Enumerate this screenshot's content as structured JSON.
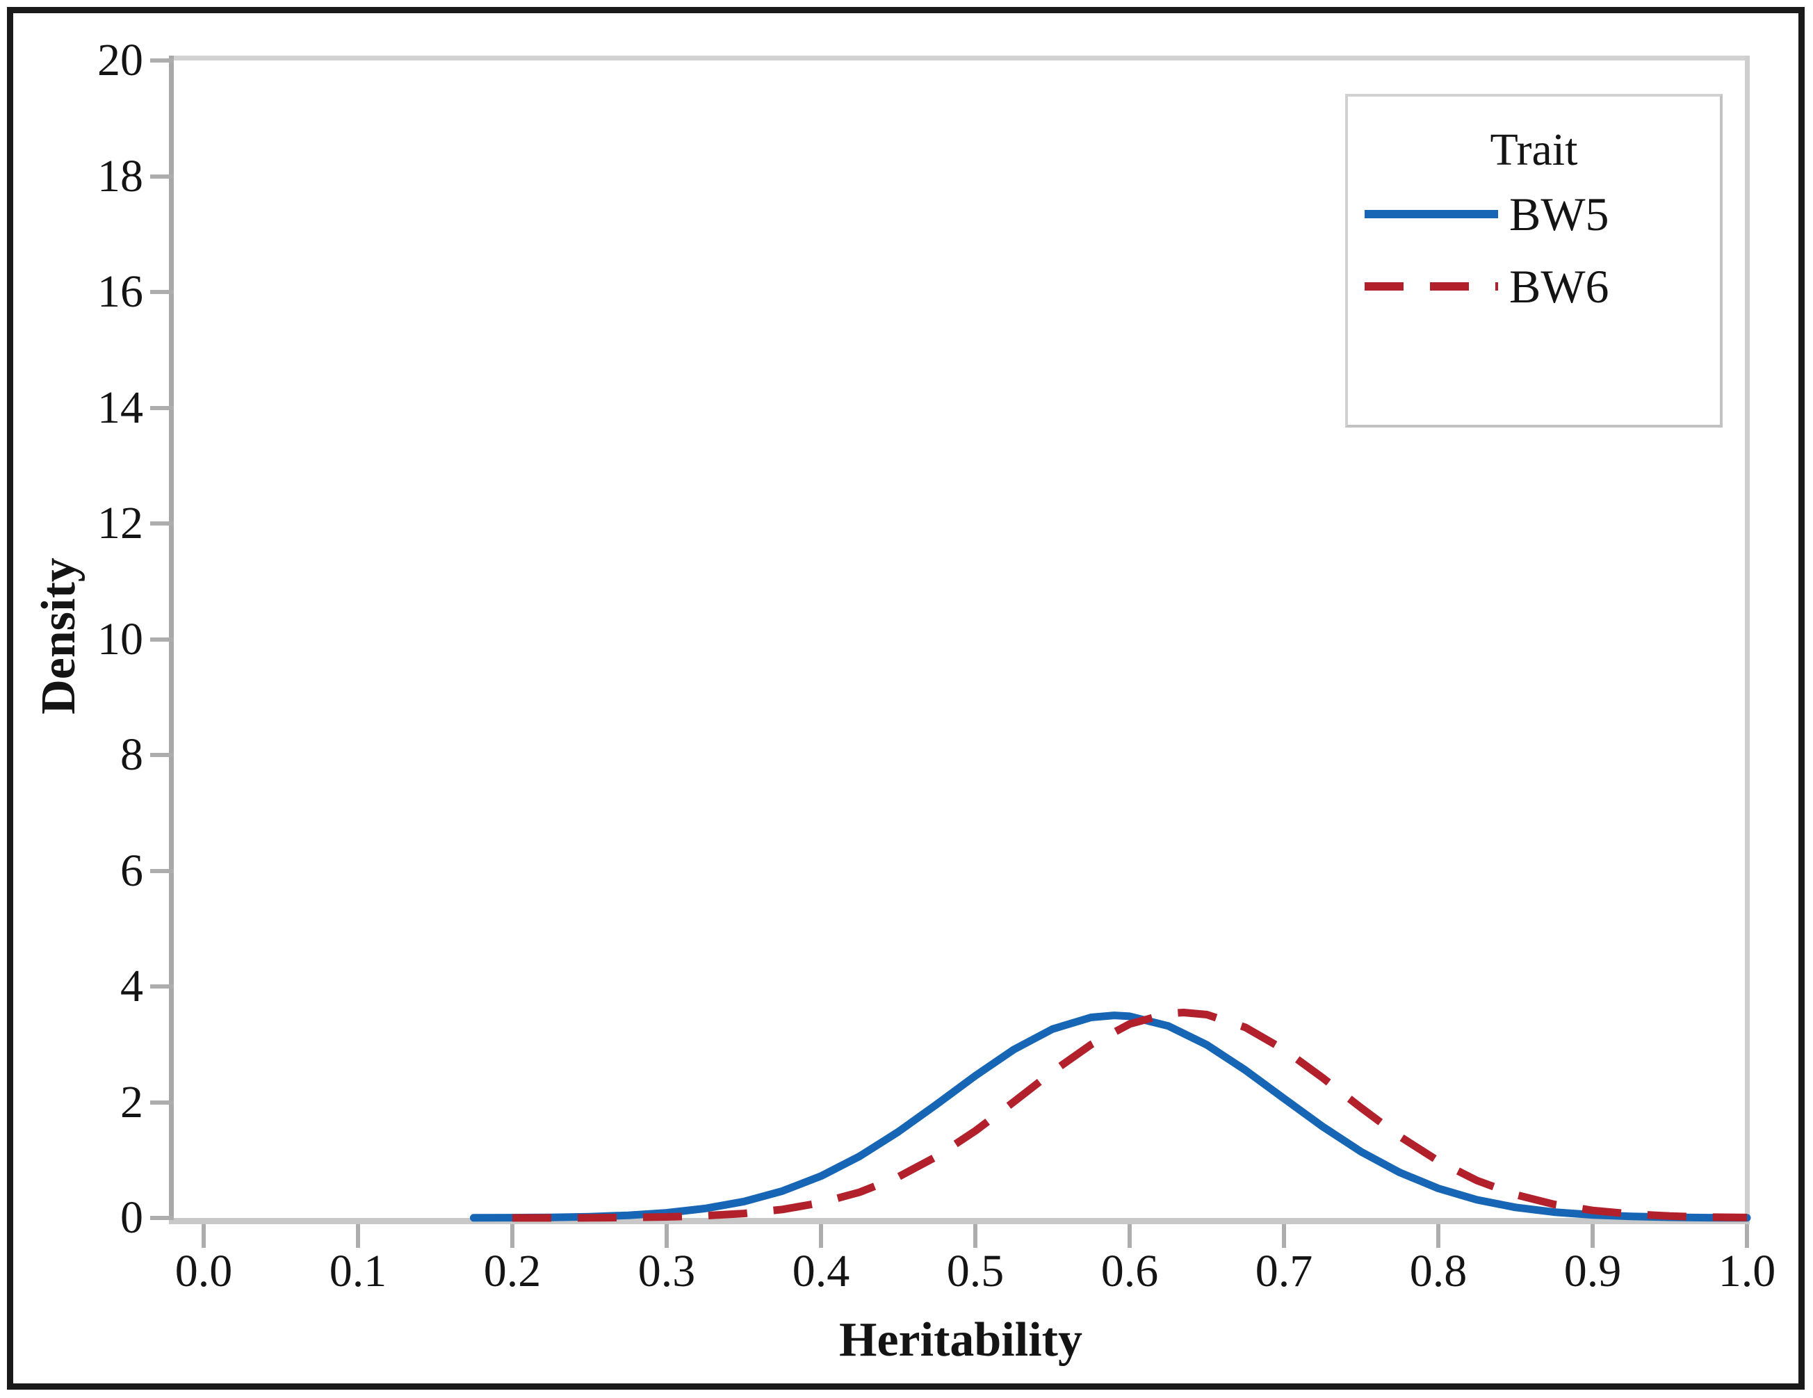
{
  "figure": {
    "background": "#ffffff",
    "outer_border_color": "#1a1a1a",
    "frame_color": "#d2d2d2",
    "axis_line_color": "#a8a8a8",
    "tick_color": "#adadad",
    "text_color": "#141414"
  },
  "chart_data": {
    "type": "line",
    "subtype": "density-curves",
    "title": "",
    "xlabel": "Heritability",
    "ylabel": "Density",
    "xlim": [
      0.0,
      1.0
    ],
    "ylim": [
      0,
      20
    ],
    "x_ticks": [
      "0.0",
      "0.1",
      "0.2",
      "0.3",
      "0.4",
      "0.5",
      "0.6",
      "0.7",
      "0.8",
      "0.9",
      "1.0"
    ],
    "y_ticks": [
      "0",
      "2",
      "4",
      "6",
      "8",
      "10",
      "12",
      "14",
      "16",
      "18",
      "20"
    ],
    "grid": "off",
    "legend": {
      "title": "Trait",
      "position": "top-right"
    },
    "series": [
      {
        "name": "BW5",
        "color": "#1766b5",
        "line_style": "solid",
        "peak": {
          "x": 0.59,
          "y": 3.5
        },
        "points": [
          [
            0.175,
            0.002
          ],
          [
            0.2,
            0.005
          ],
          [
            0.225,
            0.01
          ],
          [
            0.25,
            0.022
          ],
          [
            0.275,
            0.046
          ],
          [
            0.3,
            0.089
          ],
          [
            0.325,
            0.163
          ],
          [
            0.35,
            0.283
          ],
          [
            0.375,
            0.465
          ],
          [
            0.4,
            0.723
          ],
          [
            0.425,
            1.066
          ],
          [
            0.45,
            1.487
          ],
          [
            0.475,
            1.964
          ],
          [
            0.5,
            2.457
          ],
          [
            0.525,
            2.911
          ],
          [
            0.55,
            3.264
          ],
          [
            0.575,
            3.466
          ],
          [
            0.59,
            3.5
          ],
          [
            0.6,
            3.485
          ],
          [
            0.625,
            3.318
          ],
          [
            0.65,
            2.991
          ],
          [
            0.675,
            2.554
          ],
          [
            0.7,
            2.064
          ],
          [
            0.725,
            1.579
          ],
          [
            0.75,
            1.144
          ],
          [
            0.775,
            0.785
          ],
          [
            0.8,
            0.51
          ],
          [
            0.825,
            0.314
          ],
          [
            0.85,
            0.183
          ],
          [
            0.875,
            0.101
          ],
          [
            0.9,
            0.053
          ],
          [
            0.925,
            0.026
          ],
          [
            0.95,
            0.012
          ],
          [
            0.975,
            0.005
          ],
          [
            1.0,
            0.002
          ]
        ]
      },
      {
        "name": "BW6",
        "color": "#b2202b",
        "line_style": "dashed",
        "peak": {
          "x": 0.635,
          "y": 3.55
        },
        "points": [
          [
            0.2,
            0.001
          ],
          [
            0.225,
            0.001
          ],
          [
            0.25,
            0.003
          ],
          [
            0.275,
            0.008
          ],
          [
            0.3,
            0.018
          ],
          [
            0.325,
            0.038
          ],
          [
            0.35,
            0.077
          ],
          [
            0.375,
            0.147
          ],
          [
            0.4,
            0.263
          ],
          [
            0.425,
            0.444
          ],
          [
            0.45,
            0.708
          ],
          [
            0.475,
            1.063
          ],
          [
            0.5,
            1.504
          ],
          [
            0.525,
            2.007
          ],
          [
            0.55,
            2.526
          ],
          [
            0.575,
            2.996
          ],
          [
            0.6,
            3.351
          ],
          [
            0.625,
            3.533
          ],
          [
            0.635,
            3.55
          ],
          [
            0.65,
            3.513
          ],
          [
            0.675,
            3.292
          ],
          [
            0.7,
            2.909
          ],
          [
            0.725,
            2.423
          ],
          [
            0.75,
            1.903
          ],
          [
            0.775,
            1.409
          ],
          [
            0.8,
            0.984
          ],
          [
            0.825,
            0.647
          ],
          [
            0.85,
            0.402
          ],
          [
            0.875,
            0.235
          ],
          [
            0.9,
            0.13
          ],
          [
            0.925,
            0.067
          ],
          [
            0.95,
            0.033
          ],
          [
            0.975,
            0.015
          ],
          [
            1.0,
            0.007
          ]
        ]
      }
    ]
  }
}
